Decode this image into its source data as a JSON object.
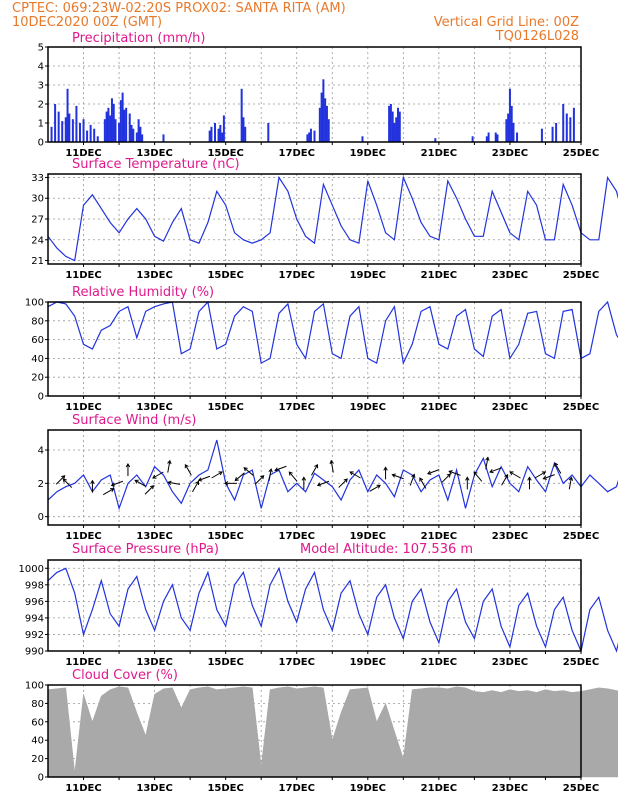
{
  "header": {
    "line1_left": "CPTEC:   069:23W-02:20S   PROX02: SANTA RITA (AM)",
    "line2_left": "10DEC2020 00Z (GMT)",
    "line1_right": "Vertical Grid Line: 00Z",
    "line2_right": "TQ0126L028"
  },
  "colors": {
    "header": "#e8792a",
    "panel_title": "#e0198c",
    "series": "#2233dd",
    "cloud": "#a9a9a9",
    "grid": "#999999"
  },
  "x_ticks": [
    "11DEC",
    "13DEC",
    "15DEC",
    "17DEC",
    "19DEC",
    "21DEC",
    "23DEC",
    "25DEC"
  ],
  "chart_data": [
    {
      "type": "bar",
      "title": "Precipitation (mm/h)",
      "ylim": [
        0,
        5
      ],
      "yticks": [
        0,
        1,
        2,
        3,
        4,
        5
      ],
      "x_unit": "days since 10DEC2020 00Z",
      "bars": [
        [
          0.1,
          0.8
        ],
        [
          0.2,
          2.0
        ],
        [
          0.3,
          1.6
        ],
        [
          0.4,
          1.1
        ],
        [
          0.5,
          1.3
        ],
        [
          0.55,
          2.8
        ],
        [
          0.6,
          1.5
        ],
        [
          0.7,
          1.2
        ],
        [
          0.8,
          1.9
        ],
        [
          0.9,
          1.0
        ],
        [
          1.0,
          1.2
        ],
        [
          1.1,
          0.6
        ],
        [
          1.2,
          0.9
        ],
        [
          1.3,
          0.7
        ],
        [
          1.4,
          0.3
        ],
        [
          1.6,
          1.2
        ],
        [
          1.65,
          1.6
        ],
        [
          1.7,
          1.8
        ],
        [
          1.75,
          1.4
        ],
        [
          1.8,
          2.3
        ],
        [
          1.85,
          2.0
        ],
        [
          1.9,
          1.2
        ],
        [
          2.0,
          1.0
        ],
        [
          2.05,
          2.2
        ],
        [
          2.1,
          2.6
        ],
        [
          2.15,
          1.7
        ],
        [
          2.2,
          1.8
        ],
        [
          2.3,
          1.5
        ],
        [
          2.35,
          0.9
        ],
        [
          2.4,
          0.7
        ],
        [
          2.5,
          0.5
        ],
        [
          2.55,
          1.2
        ],
        [
          2.6,
          0.8
        ],
        [
          2.65,
          0.4
        ],
        [
          3.25,
          0.4
        ],
        [
          4.55,
          0.6
        ],
        [
          4.6,
          0.8
        ],
        [
          4.7,
          1.0
        ],
        [
          4.8,
          0.7
        ],
        [
          4.85,
          0.9
        ],
        [
          4.9,
          0.5
        ],
        [
          4.95,
          1.4
        ],
        [
          5.45,
          2.8
        ],
        [
          5.5,
          1.3
        ],
        [
          5.55,
          0.8
        ],
        [
          6.2,
          1.0
        ],
        [
          7.3,
          0.4
        ],
        [
          7.35,
          0.5
        ],
        [
          7.4,
          0.7
        ],
        [
          7.5,
          0.6
        ],
        [
          7.65,
          1.8
        ],
        [
          7.7,
          2.6
        ],
        [
          7.75,
          3.3
        ],
        [
          7.8,
          2.3
        ],
        [
          7.85,
          1.9
        ],
        [
          7.9,
          1.2
        ],
        [
          8.85,
          0.3
        ],
        [
          9.6,
          1.9
        ],
        [
          9.65,
          2.0
        ],
        [
          9.7,
          1.6
        ],
        [
          9.75,
          1.0
        ],
        [
          9.8,
          1.3
        ],
        [
          9.85,
          1.8
        ],
        [
          9.9,
          1.6
        ],
        [
          10.9,
          0.2
        ],
        [
          11.95,
          0.3
        ],
        [
          12.35,
          0.3
        ],
        [
          12.4,
          0.5
        ],
        [
          12.6,
          0.5
        ],
        [
          12.65,
          0.4
        ],
        [
          12.9,
          1.2
        ],
        [
          12.95,
          1.5
        ],
        [
          13.0,
          2.8
        ],
        [
          13.05,
          1.9
        ],
        [
          13.1,
          1.0
        ],
        [
          13.2,
          0.5
        ],
        [
          13.9,
          0.7
        ],
        [
          14.2,
          0.8
        ],
        [
          14.3,
          1.0
        ],
        [
          14.5,
          2.0
        ],
        [
          14.6,
          1.5
        ],
        [
          14.7,
          1.3
        ],
        [
          14.8,
          1.8
        ]
      ]
    },
    {
      "type": "line",
      "title": "Surface Temperature (nC)",
      "ylim": [
        20.5,
        33.5
      ],
      "yticks": [
        21,
        24,
        27,
        30,
        33
      ],
      "series": [
        {
          "step_days": 0.25,
          "values": [
            24.5,
            22.8,
            21.6,
            21.0,
            29.0,
            30.5,
            28.5,
            26.5,
            25.0,
            27.0,
            28.5,
            27.0,
            24.5,
            23.8,
            26.5,
            28.5,
            24.0,
            23.5,
            26.5,
            31.0,
            29.0,
            25.0,
            24.0,
            23.5,
            24.0,
            25.0,
            33.0,
            31.0,
            27.0,
            24.5,
            23.5,
            32.0,
            29.0,
            26.0,
            24.0,
            23.5,
            32.5,
            29.0,
            25.0,
            24.0,
            33.0,
            30.0,
            26.5,
            24.5,
            24.0,
            32.5,
            30.0,
            27.0,
            24.5,
            24.5,
            31.0,
            28.0,
            25.0,
            24.0,
            31.0,
            29.0,
            24.0,
            24.0,
            32.0,
            29.0,
            25.0,
            24.0,
            24.0,
            33.0,
            31.0,
            26.0,
            24.0,
            31.5,
            28.0,
            25.0,
            25.5,
            30.5,
            28.5,
            24.5,
            24.5,
            28.0,
            27.0,
            27.5,
            27.0
          ]
        }
      ]
    },
    {
      "type": "line",
      "title": "Relative Humidity (%)",
      "ylim": [
        0,
        100
      ],
      "yticks": [
        0,
        20,
        40,
        60,
        80,
        100
      ],
      "series": [
        {
          "step_days": 0.25,
          "values": [
            95.0,
            100.0,
            98.0,
            85.0,
            55.0,
            50.0,
            70.0,
            75.0,
            90.0,
            95.0,
            62.0,
            90.0,
            95.0,
            98.0,
            100.0,
            45.0,
            50.0,
            90.0,
            100.0,
            50.0,
            55.0,
            85.0,
            95.0,
            90.0,
            35.0,
            40.0,
            88.0,
            98.0,
            55.0,
            40.0,
            90.0,
            98.0,
            45.0,
            40.0,
            85.0,
            95.0,
            40.0,
            35.0,
            80.0,
            95.0,
            35.0,
            55.0,
            90.0,
            95.0,
            55.0,
            50.0,
            85.0,
            92.0,
            50.0,
            42.0,
            85.0,
            92.0,
            40.0,
            55.0,
            88.0,
            90.0,
            45.0,
            40.0,
            90.0,
            92.0,
            40.0,
            45.0,
            90.0,
            100.0,
            65.0,
            50.0,
            85.0,
            100.0,
            100.0,
            50.0,
            45.0,
            85.0,
            90.0,
            55.0,
            60.0,
            80.0,
            70.0,
            75.0,
            88.0
          ]
        }
      ]
    },
    {
      "type": "line",
      "title": "Surface Wind (m/s)",
      "ylim": [
        -0.5,
        5.2
      ],
      "yticks": [
        0,
        2,
        4
      ],
      "series": [
        {
          "step_days": 0.25,
          "values": [
            1.0,
            1.5,
            1.8,
            2.0,
            2.5,
            1.5,
            2.2,
            2.5,
            0.5,
            2.0,
            2.5,
            1.8,
            3.0,
            2.5,
            1.5,
            0.8,
            2.0,
            2.5,
            2.8,
            4.6,
            2.0,
            1.0,
            2.5,
            2.8,
            0.5,
            2.5,
            2.8,
            1.5,
            2.0,
            1.5,
            2.6,
            2.2,
            1.8,
            1.0,
            2.2,
            2.8,
            1.5,
            2.5,
            2.0,
            1.2,
            2.8,
            2.5,
            1.5,
            2.2,
            2.5,
            1.0,
            2.8,
            0.5,
            2.5,
            3.5,
            1.8,
            3.0,
            2.0,
            1.5,
            3.0,
            2.2,
            1.5,
            3.2,
            2.0,
            2.5,
            1.8,
            2.5,
            2.0,
            1.5,
            1.8,
            3.5,
            2.2,
            4.6,
            2.0,
            2.5,
            1.5,
            3.0,
            2.5,
            1.8,
            3.0,
            2.2,
            2.8,
            1.5,
            0.8
          ]
        }
      ],
      "wind_arrows": [
        [
          0.35,
          2.2,
          45
        ],
        [
          0.55,
          2.0,
          135
        ],
        [
          1.25,
          1.8,
          90
        ],
        [
          1.7,
          1.5,
          30
        ],
        [
          1.95,
          2.0,
          200
        ],
        [
          2.25,
          2.8,
          90
        ],
        [
          2.6,
          2.0,
          150
        ],
        [
          2.85,
          1.6,
          45
        ],
        [
          3.1,
          2.5,
          210
        ],
        [
          3.4,
          3.0,
          80
        ],
        [
          3.55,
          2.0,
          170
        ],
        [
          3.95,
          2.8,
          120
        ],
        [
          4.15,
          1.8,
          60
        ],
        [
          4.4,
          2.3,
          200
        ],
        [
          4.75,
          2.5,
          30
        ],
        [
          5.15,
          2.0,
          180
        ],
        [
          5.4,
          2.4,
          220
        ],
        [
          5.65,
          2.7,
          140
        ],
        [
          5.95,
          2.2,
          45
        ],
        [
          6.25,
          2.5,
          80
        ],
        [
          6.55,
          2.9,
          200
        ],
        [
          6.9,
          2.4,
          130
        ],
        [
          7.2,
          2.0,
          90
        ],
        [
          7.5,
          2.8,
          60
        ],
        [
          7.75,
          2.0,
          200
        ],
        [
          8.0,
          3.0,
          100
        ],
        [
          8.3,
          2.0,
          45
        ],
        [
          8.65,
          2.5,
          150
        ],
        [
          9.2,
          1.7,
          30
        ],
        [
          9.5,
          2.6,
          90
        ],
        [
          9.85,
          2.4,
          160
        ],
        [
          10.25,
          2.2,
          70
        ],
        [
          10.55,
          2.0,
          120
        ],
        [
          10.85,
          2.7,
          200
        ],
        [
          11.2,
          2.3,
          45
        ],
        [
          11.45,
          2.6,
          160
        ],
        [
          11.8,
          2.0,
          90
        ],
        [
          12.1,
          2.4,
          130
        ],
        [
          12.35,
          3.2,
          80
        ],
        [
          12.6,
          2.8,
          200
        ],
        [
          12.85,
          2.2,
          60
        ],
        [
          13.15,
          2.5,
          150
        ],
        [
          13.55,
          2.0,
          90
        ],
        [
          13.85,
          2.5,
          30
        ],
        [
          14.1,
          2.4,
          200
        ],
        [
          14.35,
          2.9,
          120
        ],
        [
          14.7,
          2.0,
          80
        ]
      ]
    },
    {
      "type": "line",
      "title": "Surface Pressure (hPa)",
      "annotation": "Model Altitude: 107.536 m",
      "ylim": [
        990,
        1001
      ],
      "yticks": [
        990,
        992,
        994,
        996,
        998,
        1000
      ],
      "series": [
        {
          "step_days": 0.25,
          "values": [
            998.5,
            999.5,
            1000.0,
            997.0,
            992.0,
            995.0,
            998.5,
            994.5,
            993.0,
            997.5,
            999.0,
            995.0,
            992.5,
            996.0,
            998.0,
            994.0,
            992.5,
            997.0,
            999.5,
            995.0,
            993.0,
            998.0,
            999.5,
            995.5,
            993.0,
            998.0,
            1000.0,
            996.0,
            993.5,
            997.5,
            999.5,
            995.0,
            992.5,
            997.0,
            998.5,
            994.5,
            992.0,
            996.5,
            998.0,
            994.0,
            991.5,
            996.0,
            997.5,
            993.5,
            991.0,
            996.0,
            997.5,
            993.5,
            991.5,
            996.0,
            997.5,
            993.0,
            990.5,
            995.5,
            997.0,
            993.0,
            990.5,
            995.0,
            996.5,
            992.5,
            990.0,
            995.0,
            996.5,
            992.5,
            990.0,
            994.5,
            996.0,
            992.0,
            990.0,
            994.5,
            995.5,
            991.5,
            990.0,
            994.0,
            995.5,
            991.0,
            990.5,
            993.5,
            992.0
          ]
        }
      ]
    },
    {
      "type": "area",
      "title": "Cloud Cover (%)",
      "ylim": [
        0,
        100
      ],
      "yticks": [
        0,
        20,
        40,
        60,
        80,
        100
      ],
      "series": [
        {
          "step_days": 0.25,
          "values": [
            95.0,
            96.0,
            97.0,
            5.0,
            90.0,
            60.0,
            88.0,
            95.0,
            98.0,
            97.0,
            70.0,
            45.0,
            90.0,
            96.0,
            97.0,
            75.0,
            95.0,
            97.0,
            98.0,
            95.0,
            96.0,
            97.0,
            98.0,
            97.0,
            12.0,
            95.0,
            97.0,
            98.0,
            96.0,
            97.0,
            98.0,
            97.0,
            40.0,
            70.0,
            95.0,
            96.0,
            97.0,
            60.0,
            80.0,
            50.0,
            20.0,
            95.0,
            96.0,
            97.0,
            97.0,
            96.0,
            98.0,
            97.0,
            93.0,
            92.0,
            94.0,
            92.0,
            95.0,
            93.0,
            94.0,
            92.0,
            95.0,
            93.0,
            94.0,
            92.0,
            93.0,
            95.0,
            97.0,
            96.0,
            94.0,
            92.0,
            96.0,
            94.0,
            97.0,
            95.0,
            93.0,
            92.0,
            94.0,
            96.0,
            98.0,
            97.0,
            98.0,
            99.0,
            100.0
          ]
        }
      ]
    }
  ]
}
